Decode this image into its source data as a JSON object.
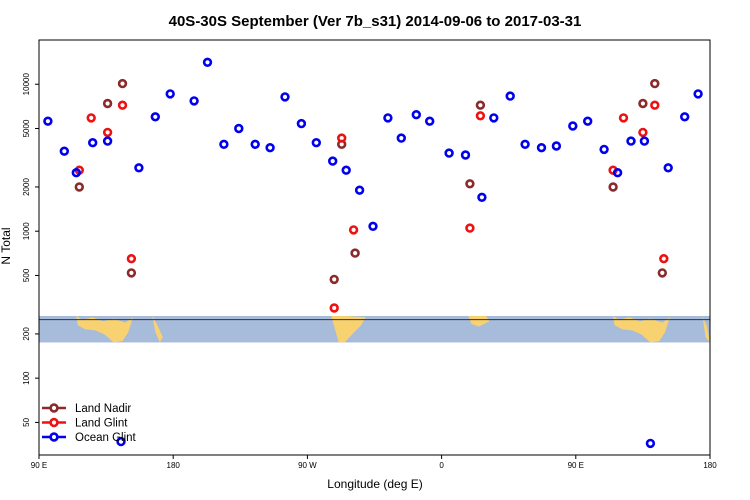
{
  "chart_data": {
    "type": "scatter",
    "title": "40S-30S September (Ver 7b_s31)   2014-09-06 to 2017-03-31",
    "xlabel": "Longitude (deg E)",
    "ylabel": "N Total",
    "xscale": "linear",
    "yscale": "log",
    "xlim": [
      90,
      540
    ],
    "ylim": [
      30,
      20000
    ],
    "x_ticks": [
      {
        "value": 90,
        "label": "90 E"
      },
      {
        "value": 180,
        "label": "180"
      },
      {
        "value": 270,
        "label": "90 W"
      },
      {
        "value": 360,
        "label": "0"
      },
      {
        "value": 450,
        "label": "90 E"
      },
      {
        "value": 540,
        "label": "180"
      }
    ],
    "y_ticks": [
      {
        "value": 50,
        "label": "50"
      },
      {
        "value": 100,
        "label": "100"
      },
      {
        "value": 200,
        "label": "200"
      },
      {
        "value": 500,
        "label": "500"
      },
      {
        "value": 1000,
        "label": "1000"
      },
      {
        "value": 2000,
        "label": "2000"
      },
      {
        "value": 5000,
        "label": "5000"
      },
      {
        "value": 10000,
        "label": "10000"
      }
    ],
    "map_band": {
      "y_range": [
        175,
        265
      ],
      "ocean_color": "#a7bbdb",
      "land_color": "#f8d270",
      "centerline_value": 250
    },
    "legend": {
      "position": "bottom-left"
    },
    "series": [
      {
        "name": "Land Nadir",
        "color": "#8b2a2a",
        "points": [
          {
            "x": 117,
            "y": 2000
          },
          {
            "x": 136,
            "y": 7400
          },
          {
            "x": 146,
            "y": 10100
          },
          {
            "x": 152,
            "y": 520
          },
          {
            "x": 288,
            "y": 470
          },
          {
            "x": 293,
            "y": 3900
          },
          {
            "x": 302,
            "y": 710
          },
          {
            "x": 379,
            "y": 2100
          },
          {
            "x": 386,
            "y": 7200
          },
          {
            "x": 475,
            "y": 2000
          },
          {
            "x": 495,
            "y": 7400
          },
          {
            "x": 503,
            "y": 10100
          },
          {
            "x": 508,
            "y": 520
          }
        ]
      },
      {
        "name": "Land Glint",
        "color": "#ee1111",
        "points": [
          {
            "x": 117,
            "y": 2600
          },
          {
            "x": 125,
            "y": 5900
          },
          {
            "x": 136,
            "y": 4700
          },
          {
            "x": 146,
            "y": 7200
          },
          {
            "x": 152,
            "y": 650
          },
          {
            "x": 288,
            "y": 300
          },
          {
            "x": 293,
            "y": 4300
          },
          {
            "x": 301,
            "y": 1020
          },
          {
            "x": 379,
            "y": 1050
          },
          {
            "x": 386,
            "y": 6100
          },
          {
            "x": 475,
            "y": 2600
          },
          {
            "x": 482,
            "y": 5900
          },
          {
            "x": 495,
            "y": 4700
          },
          {
            "x": 503,
            "y": 7200
          },
          {
            "x": 509,
            "y": 650
          }
        ]
      },
      {
        "name": "Ocean Glint",
        "color": "#0000ee",
        "points": [
          {
            "x": 96,
            "y": 5600
          },
          {
            "x": 107,
            "y": 3500
          },
          {
            "x": 115,
            "y": 2500
          },
          {
            "x": 126,
            "y": 4000
          },
          {
            "x": 136,
            "y": 4100
          },
          {
            "x": 145,
            "y": 37
          },
          {
            "x": 157,
            "y": 2700
          },
          {
            "x": 168,
            "y": 6000
          },
          {
            "x": 178,
            "y": 8600
          },
          {
            "x": 194,
            "y": 7700
          },
          {
            "x": 203,
            "y": 14100
          },
          {
            "x": 214,
            "y": 3900
          },
          {
            "x": 224,
            "y": 5000
          },
          {
            "x": 235,
            "y": 3900
          },
          {
            "x": 245,
            "y": 3700
          },
          {
            "x": 255,
            "y": 8200
          },
          {
            "x": 266,
            "y": 5400
          },
          {
            "x": 276,
            "y": 4000
          },
          {
            "x": 287,
            "y": 3000
          },
          {
            "x": 296,
            "y": 2600
          },
          {
            "x": 305,
            "y": 1900
          },
          {
            "x": 314,
            "y": 1080
          },
          {
            "x": 324,
            "y": 5900
          },
          {
            "x": 333,
            "y": 4300
          },
          {
            "x": 343,
            "y": 6200
          },
          {
            "x": 352,
            "y": 5600
          },
          {
            "x": 365,
            "y": 3400
          },
          {
            "x": 376,
            "y": 3300
          },
          {
            "x": 387,
            "y": 1700
          },
          {
            "x": 395,
            "y": 5900
          },
          {
            "x": 406,
            "y": 8300
          },
          {
            "x": 416,
            "y": 3900
          },
          {
            "x": 427,
            "y": 3700
          },
          {
            "x": 437,
            "y": 3800
          },
          {
            "x": 448,
            "y": 5200
          },
          {
            "x": 458,
            "y": 5600
          },
          {
            "x": 469,
            "y": 3600
          },
          {
            "x": 478,
            "y": 2500
          },
          {
            "x": 487,
            "y": 4100
          },
          {
            "x": 496,
            "y": 4100
          },
          {
            "x": 500,
            "y": 36
          },
          {
            "x": 512,
            "y": 2700
          },
          {
            "x": 523,
            "y": 6000
          },
          {
            "x": 532,
            "y": 8600
          }
        ]
      }
    ]
  }
}
